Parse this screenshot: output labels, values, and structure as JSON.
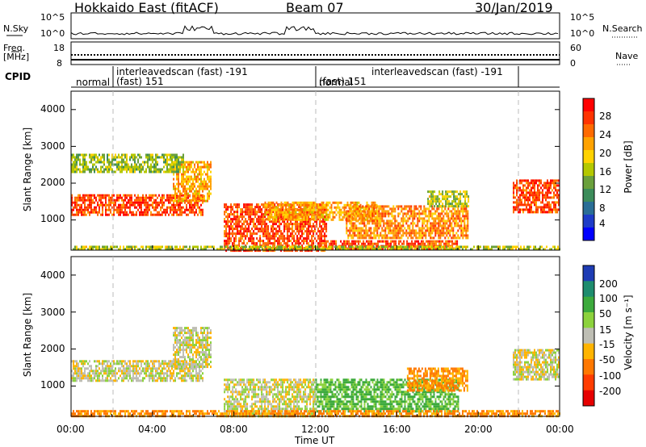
{
  "header": {
    "title": "Hokkaido East (fitACF)",
    "beam": "Beam 07",
    "date": "30/Jan/2019"
  },
  "panel_labels": {
    "nsky": "N.Sky",
    "nsky_ticks": [
      "10^5",
      "10^0"
    ],
    "nsearch": "N.Search",
    "nsearch_ticks": [
      "10^5",
      "10^0"
    ],
    "freq_label_1": "Freq.",
    "freq_label_2": "[MHz]",
    "freq_ticks": [
      "18",
      "8"
    ],
    "nave": "Nave",
    "nave_ticks": [
      "60",
      "0"
    ],
    "cpid": "CPID"
  },
  "cpid_segments": [
    {
      "label": "normal"
    },
    {
      "label": "interleavedscan (fast) -191",
      "sub": "(fast) 151"
    },
    {
      "label": "normal"
    },
    {
      "label": "interleavedscan (fast) -191",
      "sub": "(fast) 151"
    }
  ],
  "axes": {
    "ylabel": "Slant Range [km]",
    "y_ticks": [
      "4000",
      "3000",
      "2000",
      "1000"
    ],
    "x_ticks": [
      "00:00",
      "04:00",
      "08:00",
      "12:00",
      "16:00",
      "20:00",
      "00:00"
    ],
    "xlabel": "Time UT"
  },
  "colorbars": {
    "power": {
      "label": "Power [dB]",
      "ticks": [
        "28",
        "24",
        "20",
        "16",
        "12",
        "8",
        "4"
      ],
      "colors": [
        "#ff0000",
        "#ff3300",
        "#ff6a00",
        "#ffa200",
        "#ffd200",
        "#b4c800",
        "#6aa03c",
        "#3c8c5a",
        "#2a6e96",
        "#1e3cc8",
        "#0000ff"
      ]
    },
    "velocity": {
      "label": "Velocity [m s⁻¹]",
      "ticks": [
        "200",
        "100",
        "50",
        "15",
        "-15",
        "-50",
        "-100",
        "-200"
      ],
      "colors": [
        "#1e3cb4",
        "#1e8c6e",
        "#3caa3c",
        "#8cd23c",
        "#bebeb4",
        "#ffb400",
        "#ff7800",
        "#ff3c00",
        "#e60000"
      ]
    }
  },
  "chart_data": [
    {
      "type": "heatmap",
      "title": "Power",
      "xlabel": "Time UT",
      "ylabel": "Slant Range [km]",
      "xlim": [
        "00:00",
        "24:00"
      ],
      "ylim": [
        180,
        4500
      ],
      "colorbar": {
        "label": "Power [dB]",
        "range": [
          0,
          32
        ]
      },
      "patches": [
        {
          "t": [
            0.0,
            6.5
          ],
          "r": [
            1150,
            1700
          ],
          "value_db": 28
        },
        {
          "t": [
            5.0,
            6.9
          ],
          "r": [
            1500,
            2600
          ],
          "value_db": 22
        },
        {
          "t": [
            0.0,
            5.5
          ],
          "r": [
            2300,
            2800
          ],
          "value_db": 14
        },
        {
          "t": [
            7.5,
            12.5
          ],
          "r": [
            180,
            1450
          ],
          "value_db": 28
        },
        {
          "t": [
            9.5,
            15.0
          ],
          "r": [
            1000,
            1500
          ],
          "value_db": 22
        },
        {
          "t": [
            12.5,
            19.0
          ],
          "r": [
            250,
            450
          ],
          "value_db": 28
        },
        {
          "t": [
            13.5,
            19.5
          ],
          "r": [
            500,
            1400
          ],
          "value_db": 24
        },
        {
          "t": [
            17.5,
            19.5
          ],
          "r": [
            1400,
            1800
          ],
          "value_db": 16
        },
        {
          "t": [
            21.7,
            24.0
          ],
          "r": [
            1200,
            2100
          ],
          "value_db": 28
        },
        {
          "t": [
            0.0,
            24.0
          ],
          "r": [
            180,
            300
          ],
          "value_db": 16
        }
      ]
    },
    {
      "type": "heatmap",
      "title": "Velocity",
      "xlabel": "Time UT",
      "ylabel": "Slant Range [km]",
      "xlim": [
        "00:00",
        "24:00"
      ],
      "ylim": [
        180,
        4500
      ],
      "colorbar": {
        "label": "Velocity [m s-1]",
        "range": [
          -250,
          250
        ]
      },
      "patches": [
        {
          "t": [
            0.0,
            6.5
          ],
          "r": [
            1150,
            1700
          ],
          "value_ms": 0
        },
        {
          "t": [
            5.0,
            6.9
          ],
          "r": [
            1500,
            2600
          ],
          "value_ms": 0
        },
        {
          "t": [
            7.5,
            12.0
          ],
          "r": [
            200,
            1200
          ],
          "value_ms": 0
        },
        {
          "t": [
            12.0,
            19.0
          ],
          "r": [
            300,
            1200
          ],
          "value_ms": 60
        },
        {
          "t": [
            16.5,
            19.5
          ],
          "r": [
            900,
            1500
          ],
          "value_ms": -60
        },
        {
          "t": [
            21.7,
            24.0
          ],
          "r": [
            1200,
            2000
          ],
          "value_ms": 0
        },
        {
          "t": [
            0.0,
            24.0
          ],
          "r": [
            180,
            350
          ],
          "value_ms": -60
        }
      ]
    }
  ]
}
